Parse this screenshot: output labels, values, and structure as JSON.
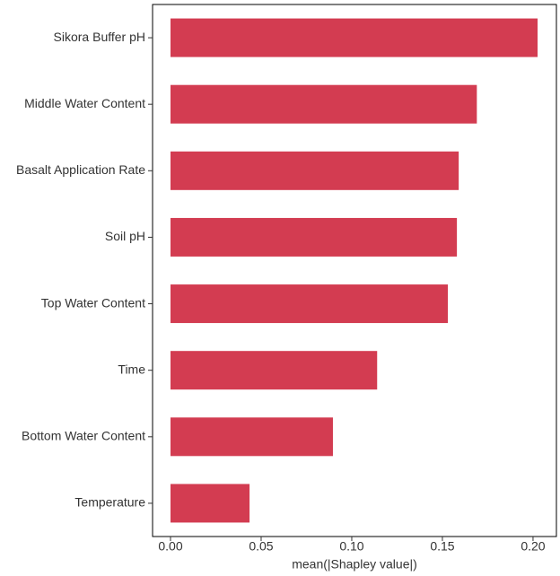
{
  "chart_data": {
    "type": "barh",
    "categories": [
      "Sikora Buffer pH",
      "Middle Water Content",
      "Basalt Application Rate",
      "Soil pH",
      "Top Water Content",
      "Time",
      "Bottom Water Content",
      "Temperature"
    ],
    "values": [
      0.2025,
      0.169,
      0.159,
      0.158,
      0.153,
      0.114,
      0.0896,
      0.0436
    ],
    "color": "#d33c51",
    "xlabel": "mean(|Shapley value|)",
    "xlim": [
      -0.0099,
      0.2129
    ],
    "xticks": [
      {
        "value": 0,
        "label": "0.00"
      },
      {
        "value": 0.05,
        "label": "0.05"
      },
      {
        "value": 0.1,
        "label": "0.10"
      },
      {
        "value": 0.15,
        "label": "0.15"
      },
      {
        "value": 0.2,
        "label": "0.20"
      }
    ],
    "grid": false
  }
}
